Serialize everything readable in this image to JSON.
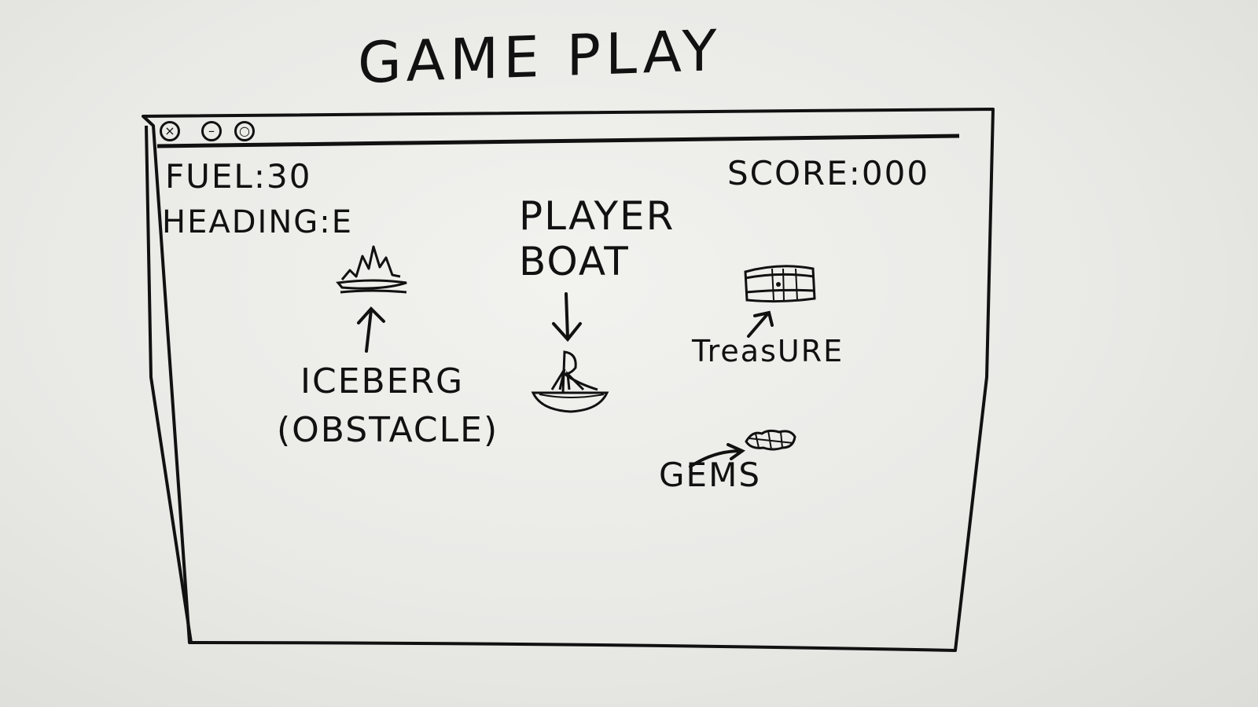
{
  "title": "GAME PLAY",
  "window": {
    "controls": [
      {
        "name": "close-button",
        "glyph": "×"
      },
      {
        "name": "minimize-button",
        "glyph": "–"
      },
      {
        "name": "maximize-button",
        "glyph": "○"
      }
    ]
  },
  "hud": {
    "fuel": "FUEL:30",
    "heading": "HEADING:E",
    "score": "SCORE:000"
  },
  "labels": {
    "player_line1": "PLAYER",
    "player_line2": "BOAT",
    "iceberg_line1": "ICEBERG",
    "iceberg_line2": "(OBSTACLE)",
    "treasure": "TreasURE",
    "gems": "GEMS"
  },
  "icons": {
    "iceberg": "iceberg-icon",
    "boat": "boat-icon",
    "treasure": "treasure-chest-icon",
    "gems": "gems-icon"
  }
}
